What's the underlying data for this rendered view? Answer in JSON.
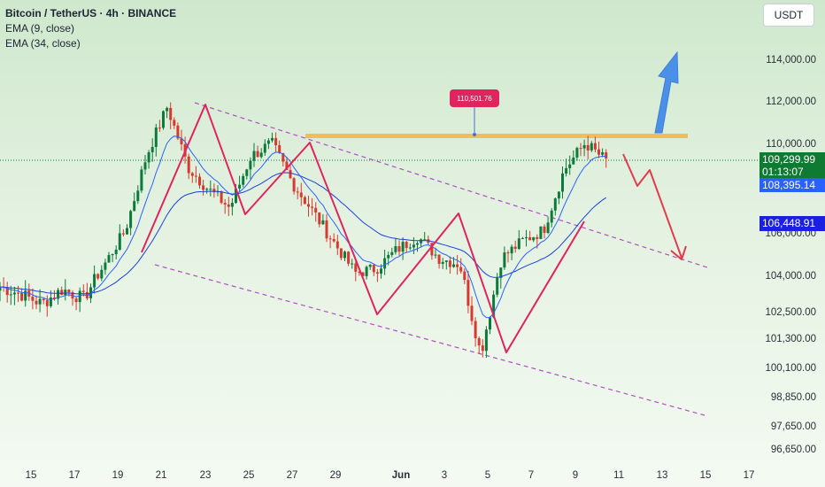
{
  "header": {
    "symbol_line": "Bitcoin / TetherUS · 4h · BINANCE",
    "ema_fast": "EMA (9, close)",
    "ema_slow": "EMA (34, close)",
    "currency": "USDT"
  },
  "colors": {
    "up": "#0b7a3b",
    "down": "#d8392f",
    "ema_fast": "#2962ff",
    "ema_slow": "#1b3fd9",
    "zigzag": "#e0245e",
    "channel": "#b04fc4",
    "resistance": "#f2bc5a",
    "arrow_up": "#4a8fe8",
    "arrow_down": "#e23b4e"
  },
  "chart_data": {
    "type": "candlestick",
    "x_ticks": [
      "15",
      "17",
      "19",
      "21",
      "23",
      "25",
      "27",
      "29",
      "Jun",
      "3",
      "5",
      "7",
      "9",
      "11",
      "13",
      "15",
      "17"
    ],
    "y_ticks": [
      "114,000.00",
      "112,000.00",
      "110,000.00",
      "106,000.00",
      "104,000.00",
      "102,500.00",
      "101,300.00",
      "100,100.00",
      "98,850.00",
      "97,650.00",
      "96,650.00"
    ],
    "price_labels": {
      "current_price": "109,299.99",
      "countdown": "01:13:07",
      "ema_fast_value": "108,395.14",
      "ema_slow_value": "106,448.91",
      "peak_annotation": "110,501.76"
    },
    "candles_close_path": [
      {
        "date": "May 14",
        "close": 103600
      },
      {
        "date": "May 15",
        "close": 103300
      },
      {
        "date": "May 16",
        "close": 102900
      },
      {
        "date": "May 17",
        "close": 103500
      },
      {
        "date": "May 18",
        "close": 103100
      },
      {
        "date": "May 19",
        "close": 104600
      },
      {
        "date": "May 20",
        "close": 106200
      },
      {
        "date": "May 21",
        "close": 109500
      },
      {
        "date": "May 22",
        "close": 111800
      },
      {
        "date": "May 23",
        "close": 109000
      },
      {
        "date": "May 24",
        "close": 108000
      },
      {
        "date": "May 25",
        "close": 107200
      },
      {
        "date": "May 26",
        "close": 109500
      },
      {
        "date": "May 27",
        "close": 110100
      },
      {
        "date": "May 28",
        "close": 108300
      },
      {
        "date": "May 29",
        "close": 107000
      },
      {
        "date": "May 30",
        "close": 105600
      },
      {
        "date": "May 31",
        "close": 104200
      },
      {
        "date": "Jun 1",
        "close": 104400
      },
      {
        "date": "Jun 2",
        "close": 105300
      },
      {
        "date": "Jun 3",
        "close": 105900
      },
      {
        "date": "Jun 4",
        "close": 104900
      },
      {
        "date": "Jun 5",
        "close": 104600
      },
      {
        "date": "Jun 6",
        "close": 100700
      },
      {
        "date": "Jun 7",
        "close": 104900
      },
      {
        "date": "Jun 8",
        "close": 105700
      },
      {
        "date": "Jun 9",
        "close": 106200
      },
      {
        "date": "Jun 9",
        "close": 108900
      },
      {
        "date": "Jun 10",
        "close": 110100
      },
      {
        "date": "Jun 10",
        "close": 109300
      }
    ],
    "resistance_level": 110501.76,
    "xlabel": "",
    "ylabel": ""
  }
}
